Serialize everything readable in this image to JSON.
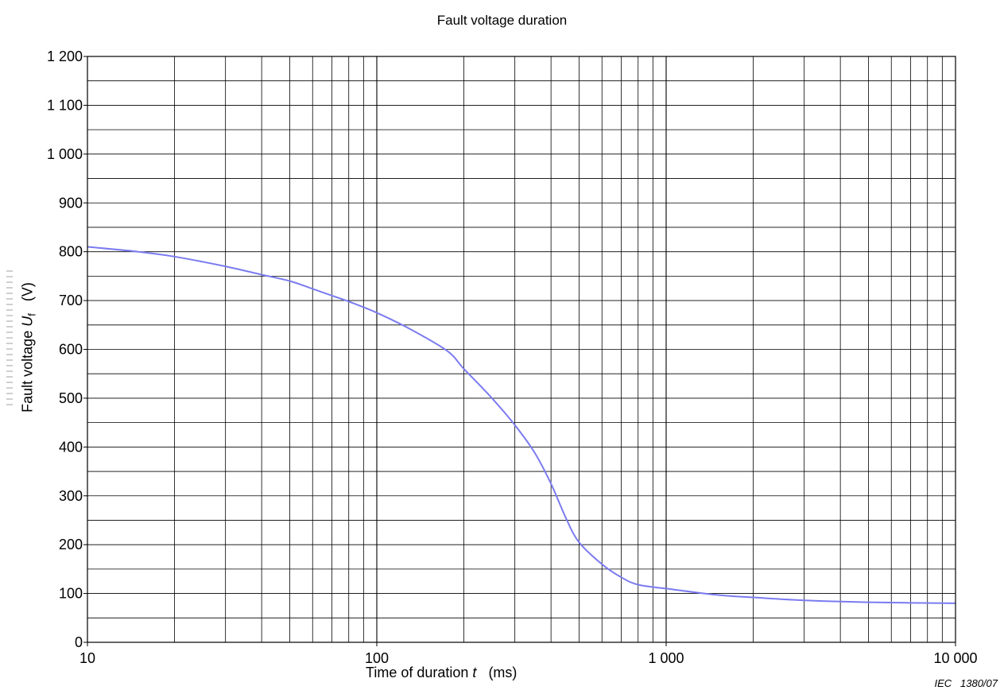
{
  "chart_data": {
    "type": "line",
    "title": "Fault voltage duration",
    "xlabel": {
      "prefix": "Time of duration ",
      "var": "t",
      "unit": "(ms)"
    },
    "ylabel": {
      "prefix": "Fault voltage ",
      "var": "U",
      "sub": "f",
      "unit": "(V)"
    },
    "x_scale": "log",
    "xlim": [
      10,
      10000
    ],
    "ylim": [
      0,
      1200
    ],
    "x_ticks": [
      10,
      100,
      1000,
      10000
    ],
    "x_tick_labels": [
      "10",
      "100",
      "1 000",
      "10 000"
    ],
    "y_ticks": [
      0,
      100,
      200,
      300,
      400,
      500,
      600,
      700,
      800,
      900,
      1000,
      1100,
      1200
    ],
    "y_tick_labels": [
      "0",
      "100",
      "200",
      "300",
      "400",
      "500",
      "600",
      "700",
      "800",
      "900",
      "1 000",
      "1 100",
      "1 200"
    ],
    "grid": true,
    "series": [
      {
        "color": "#7b7bf0",
        "x": [
          10,
          15,
          20,
          30,
          40,
          50,
          60,
          70,
          80,
          100,
          130,
          175,
          200,
          250,
          300,
          350,
          400,
          450,
          500,
          600,
          700,
          800,
          1000,
          1500,
          2000,
          3000,
          5000,
          10000
        ],
        "y": [
          810,
          800,
          790,
          770,
          753,
          740,
          724,
          710,
          698,
          675,
          642,
          597,
          560,
          500,
          445,
          390,
          325,
          255,
          205,
          160,
          133,
          118,
          110,
          97,
          92,
          86,
          82,
          80
        ]
      }
    ]
  },
  "figure_ref": "IEC   1380/07"
}
